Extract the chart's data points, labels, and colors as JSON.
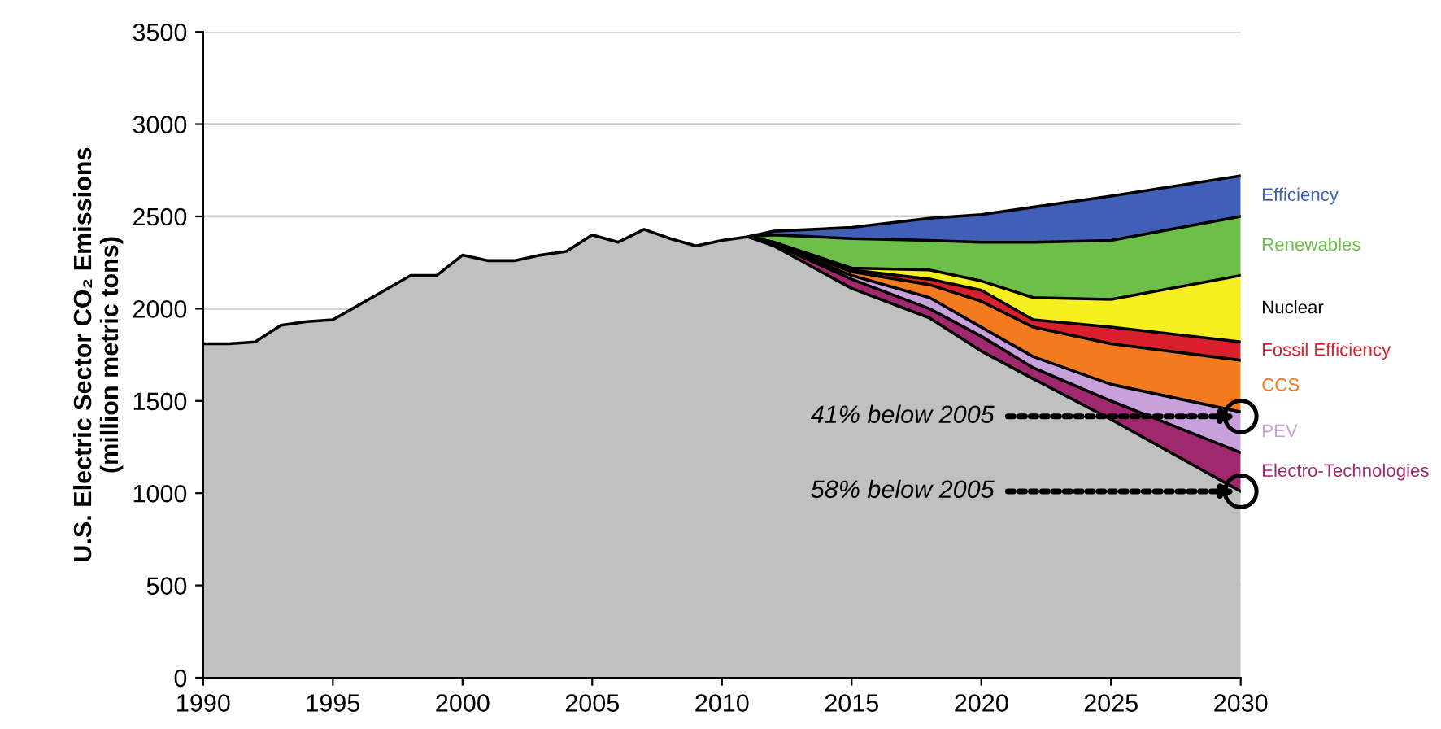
{
  "chart_data": {
    "type": "area",
    "stacked": true,
    "ylabel": "U.S. Electric Sector CO₂ Emissions\n(million metric tons)",
    "x": [
      1990,
      1991,
      1992,
      1993,
      1994,
      1995,
      1996,
      1997,
      1998,
      1999,
      2000,
      2001,
      2002,
      2003,
      2004,
      2005,
      2006,
      2007,
      2008,
      2009,
      2010,
      2011,
      2012,
      2015,
      2018,
      2020,
      2022,
      2025,
      2030
    ],
    "series": [
      {
        "color": "#c0c0c0",
        "values": [
          1810,
          1810,
          1820,
          1910,
          1930,
          1940,
          2020,
          2100,
          2180,
          2180,
          2290,
          2260,
          2260,
          2290,
          2310,
          2400,
          2360,
          2430,
          2380,
          2340,
          2370,
          2390,
          2340,
          2110,
          1950,
          1770,
          1620,
          1400,
          1010
        ]
      },
      {
        "name": "Electro-Technologies",
        "color": "#a0286e",
        "values": [
          null,
          null,
          null,
          null,
          null,
          null,
          null,
          null,
          null,
          null,
          null,
          null,
          null,
          null,
          null,
          null,
          null,
          null,
          null,
          null,
          null,
          0,
          10,
          50,
          50,
          80,
          60,
          100,
          210
        ]
      },
      {
        "name": "PEV",
        "color": "#c8a0dc",
        "values": [
          null,
          null,
          null,
          null,
          null,
          null,
          null,
          null,
          null,
          null,
          null,
          null,
          null,
          null,
          null,
          null,
          null,
          null,
          null,
          null,
          null,
          0,
          0,
          20,
          60,
          50,
          60,
          90,
          220
        ]
      },
      {
        "name": "CCS",
        "color": "#f47a20",
        "values": [
          null,
          null,
          null,
          null,
          null,
          null,
          null,
          null,
          null,
          null,
          null,
          null,
          null,
          null,
          null,
          null,
          null,
          null,
          null,
          null,
          null,
          0,
          10,
          20,
          70,
          140,
          160,
          220,
          280
        ]
      },
      {
        "name": "Fossil Efficiency",
        "color": "#d8202c",
        "values": [
          null,
          null,
          null,
          null,
          null,
          null,
          null,
          null,
          null,
          null,
          null,
          null,
          null,
          null,
          null,
          null,
          null,
          null,
          null,
          null,
          null,
          0,
          0,
          10,
          30,
          60,
          40,
          90,
          100
        ]
      },
      {
        "name": "Nuclear",
        "color": "#f5ef20",
        "values": [
          null,
          null,
          null,
          null,
          null,
          null,
          null,
          null,
          null,
          null,
          null,
          null,
          null,
          null,
          null,
          null,
          null,
          null,
          null,
          null,
          null,
          0,
          0,
          10,
          50,
          50,
          120,
          150,
          360
        ]
      },
      {
        "name": "Renewables",
        "color": "#6cc04a",
        "values": [
          null,
          null,
          null,
          null,
          null,
          null,
          null,
          null,
          null,
          null,
          null,
          null,
          null,
          null,
          null,
          null,
          null,
          null,
          null,
          null,
          null,
          0,
          40,
          160,
          160,
          210,
          300,
          320,
          320
        ]
      },
      {
        "name": "Efficiency",
        "color": "#4060b8",
        "values": [
          null,
          null,
          null,
          null,
          null,
          null,
          null,
          null,
          null,
          null,
          null,
          null,
          null,
          null,
          null,
          null,
          null,
          null,
          null,
          null,
          null,
          0,
          20,
          60,
          120,
          150,
          190,
          240,
          220
        ]
      }
    ],
    "xlim": [
      1990,
      2030
    ],
    "xticks": [
      1990,
      1995,
      2000,
      2005,
      2010,
      2015,
      2020,
      2025,
      2030
    ],
    "ylim": [
      0,
      3500
    ],
    "yticks": [
      0,
      500,
      1000,
      1500,
      2000,
      2500,
      3000,
      3500
    ],
    "grid": "y",
    "annotations": [
      {
        "text": "41% below 2005",
        "x": 2030,
        "y": 1416
      },
      {
        "text": "58% below 2005",
        "x": 2030,
        "y": 1010
      }
    ]
  }
}
